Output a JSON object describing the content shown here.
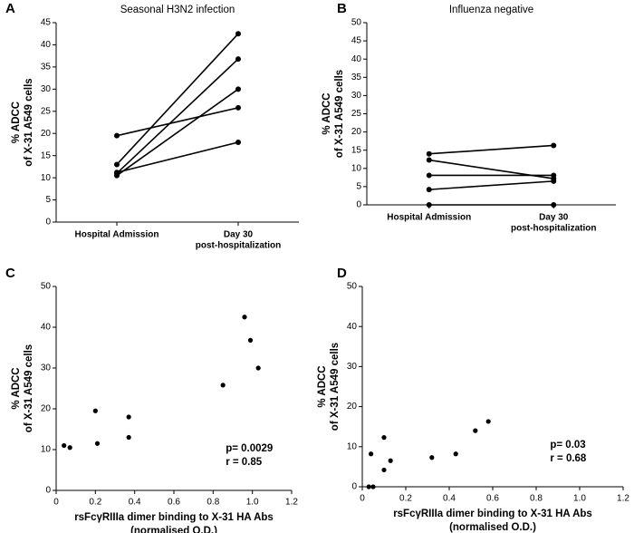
{
  "chart_data": [
    {
      "type": "paired",
      "panel": "A",
      "title": "Seasonal H3N2 infection",
      "ylabel": [
        "% ADCC",
        "of X-31 A549 cells"
      ],
      "categories": [
        "Hospital Admission",
        [
          "Day 30",
          "post-hospitalization"
        ]
      ],
      "color": "#000000",
      "series": [
        {
          "values": [
            19.5,
            25.8
          ]
        },
        {
          "values": [
            13,
            42.5
          ]
        },
        {
          "values": [
            11,
            36.8
          ]
        },
        {
          "values": [
            10.5,
            30
          ]
        },
        {
          "values": [
            11.2,
            18
          ]
        }
      ],
      "ylim": [
        0,
        45
      ],
      "yticks": [
        0,
        5,
        10,
        15,
        20,
        25,
        30,
        35,
        40,
        45
      ]
    },
    {
      "type": "paired",
      "panel": "B",
      "title": "Influenza negative",
      "ylabel": [
        "% ADCC",
        "of X-31 A549 cells"
      ],
      "categories": [
        "Hospital Admission",
        [
          "Day 30",
          "post-hospitalization"
        ]
      ],
      "color": "#000000",
      "series": [
        {
          "values": [
            14,
            16.3
          ]
        },
        {
          "values": [
            12.3,
            7.2
          ]
        },
        {
          "values": [
            8.1,
            8.1
          ]
        },
        {
          "values": [
            4.2,
            6.5
          ]
        },
        {
          "values": [
            0,
            0
          ]
        }
      ],
      "hline": 0,
      "ylim": [
        0,
        50
      ],
      "yticks": [
        0,
        5,
        10,
        15,
        20,
        25,
        30,
        35,
        40,
        45,
        50
      ]
    },
    {
      "type": "scatter",
      "panel": "C",
      "ylabel": [
        "% ADCC",
        "of X-31 A549 cells"
      ],
      "xlabel": [
        "rsFcγRIIIa dimer binding to X-31 HA Abs",
        "(normalised O.D.)"
      ],
      "color": "#000000",
      "x": [
        0.04,
        0.07,
        0.2,
        0.21,
        0.37,
        0.37,
        0.85,
        0.96,
        0.99,
        1.03
      ],
      "values": [
        11,
        10.5,
        19.5,
        11.5,
        18,
        13,
        25.8,
        42.5,
        36.8,
        30
      ],
      "annotations": [
        "p= 0.0029",
        "r = 0.85"
      ],
      "xlim": [
        0,
        1.2
      ],
      "xticks": [
        0,
        0.2,
        0.4,
        0.6,
        0.8,
        {
          "value": 1,
          "label": "1.0"
        },
        1.2
      ],
      "ylim": [
        0,
        50
      ],
      "yticks": [
        0,
        10,
        20,
        30,
        40,
        50
      ]
    },
    {
      "type": "scatter",
      "panel": "D",
      "ylabel": [
        "% ADCC",
        "of X-31 A549 cells"
      ],
      "xlabel": [
        "rsFcγRIIIa dimer binding to X-31 HA Abs",
        "(normalised O.D.)"
      ],
      "color": "#000000",
      "x": [
        0.03,
        0.05,
        0.04,
        0.1,
        0.1,
        0.13,
        0.32,
        0.43,
        0.52,
        0.58
      ],
      "values": [
        0,
        0,
        8.2,
        12.3,
        4.2,
        6.5,
        7.3,
        8.2,
        14,
        16.3
      ],
      "annotations": [
        "p= 0.03",
        "r = 0.68"
      ],
      "xlim": [
        0,
        1.2
      ],
      "xticks": [
        0,
        0.2,
        0.4,
        0.6,
        0.8,
        {
          "value": 1,
          "label": "1.0"
        },
        1.2
      ],
      "ylim": [
        0,
        50
      ],
      "yticks": [
        0,
        10,
        20,
        30,
        40,
        50
      ]
    }
  ]
}
